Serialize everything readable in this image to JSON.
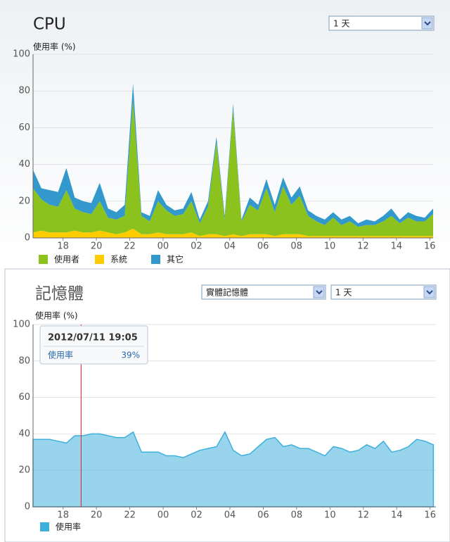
{
  "chart_data": [
    {
      "type": "area",
      "title": "CPU",
      "ylabel": "使用率 (%)",
      "stacked": true,
      "grid": true,
      "x": [
        16.2,
        16.7,
        17.2,
        17.7,
        18.2,
        18.7,
        19.2,
        19.7,
        20.2,
        20.7,
        21.2,
        21.7,
        22.2,
        22.7,
        23.2,
        23.7,
        24.2,
        24.7,
        25.2,
        25.7,
        26.2,
        26.7,
        27.2,
        27.7,
        28.2,
        28.7,
        29.2,
        29.7,
        30.2,
        30.7,
        31.2,
        31.7,
        32.2,
        32.7,
        33.2,
        33.7,
        34.2,
        34.7,
        35.2,
        35.7,
        36.2,
        36.7,
        37.2,
        37.7,
        38.2,
        38.7,
        39.2,
        39.7,
        40.2
      ],
      "series": [
        {
          "name": "使用者",
          "color": "#8cc21e",
          "values": [
            24,
            17,
            15,
            14,
            23,
            12,
            11,
            10,
            16,
            8,
            8,
            9,
            70,
            10,
            7,
            17,
            13,
            10,
            11,
            17,
            7,
            15,
            50,
            9,
            68,
            8,
            16,
            13,
            25,
            13,
            26,
            16,
            21,
            11,
            8,
            6,
            10,
            6,
            8,
            5,
            6,
            6,
            8,
            11,
            7,
            10,
            8,
            8,
            12
          ]
        },
        {
          "name": "系統",
          "color": "#ffcc00",
          "values": [
            3,
            4,
            3,
            3,
            3,
            4,
            3,
            3,
            4,
            3,
            2,
            3,
            5,
            2,
            2,
            3,
            2,
            2,
            2,
            3,
            1,
            2,
            2,
            1,
            2,
            1,
            2,
            2,
            2,
            1,
            2,
            2,
            2,
            1,
            1,
            1,
            1,
            1,
            1,
            1,
            1,
            1,
            1,
            1,
            1,
            1,
            1,
            1,
            1
          ]
        },
        {
          "name": "其它",
          "color": "#3399cc",
          "values": [
            10,
            6,
            8,
            8,
            12,
            6,
            6,
            6,
            10,
            5,
            4,
            6,
            9,
            2,
            3,
            6,
            3,
            3,
            3,
            5,
            2,
            3,
            3,
            2,
            3,
            1,
            4,
            3,
            5,
            4,
            5,
            4,
            5,
            3,
            3,
            3,
            3,
            3,
            3,
            2,
            3,
            2,
            3,
            4,
            2,
            3,
            3,
            2,
            3
          ]
        }
      ],
      "xlim": [
        16.2,
        40.2
      ],
      "ylim": [
        0,
        100
      ],
      "yticks": [
        0,
        20,
        40,
        60,
        80,
        100
      ],
      "xticks": [
        18,
        20,
        22,
        {
          "value": 24,
          "label": "00"
        },
        {
          "value": 26,
          "label": "02"
        },
        {
          "value": 28,
          "label": "04"
        },
        {
          "value": 30,
          "label": "06"
        },
        {
          "value": 32,
          "label": "08"
        },
        {
          "value": 34,
          "label": "10"
        },
        {
          "value": 36,
          "label": "12"
        },
        {
          "value": 38,
          "label": "14"
        },
        {
          "value": 40,
          "label": "16"
        }
      ]
    },
    {
      "type": "area",
      "title": "記憶體",
      "ylabel": "使用率 (%)",
      "grid": true,
      "x": [
        16.2,
        16.7,
        17.2,
        17.7,
        18.2,
        18.7,
        19.2,
        19.7,
        20.2,
        20.7,
        21.2,
        21.7,
        22.2,
        22.7,
        23.2,
        23.7,
        24.2,
        24.7,
        25.2,
        25.7,
        26.2,
        26.7,
        27.2,
        27.7,
        28.2,
        28.7,
        29.2,
        29.7,
        30.2,
        30.7,
        31.2,
        31.7,
        32.2,
        32.7,
        33.2,
        33.7,
        34.2,
        34.7,
        35.2,
        35.7,
        36.2,
        36.7,
        37.2,
        37.7,
        38.2,
        38.7,
        39.2,
        39.7,
        40.2
      ],
      "series": [
        {
          "name": "使用率",
          "color": "#3db0dc",
          "values": [
            37,
            37,
            37,
            36,
            35,
            39,
            39,
            40,
            40,
            39,
            38,
            38,
            41,
            30,
            30,
            30,
            28,
            28,
            27,
            29,
            31,
            32,
            33,
            41,
            31,
            28,
            29,
            33,
            37,
            38,
            33,
            34,
            32,
            32,
            30,
            28,
            33,
            32,
            30,
            31,
            34,
            32,
            36,
            30,
            31,
            33,
            37,
            36,
            34
          ]
        }
      ],
      "xlim": [
        16.2,
        40.35
      ],
      "ylim": [
        0,
        100
      ],
      "yticks": [
        0,
        20,
        40,
        60,
        80,
        100
      ],
      "xticks": [
        18,
        20,
        22,
        {
          "value": 24,
          "label": "00"
        },
        {
          "value": 26,
          "label": "02"
        },
        {
          "value": 28,
          "label": "04"
        },
        {
          "value": 30,
          "label": "06"
        },
        {
          "value": 32,
          "label": "08"
        },
        {
          "value": 34,
          "label": "10"
        },
        {
          "value": 36,
          "label": "12"
        },
        {
          "value": 38,
          "label": "14"
        },
        {
          "value": 40,
          "label": "16"
        }
      ],
      "annotation": {
        "time": "2012/07/11 19:05",
        "x": 19.08,
        "label": "使用率",
        "text": "39%"
      }
    }
  ],
  "controls": {
    "cpu_range": "1 天",
    "memory_source": "實體記憶體",
    "memory_range": "1 天"
  }
}
